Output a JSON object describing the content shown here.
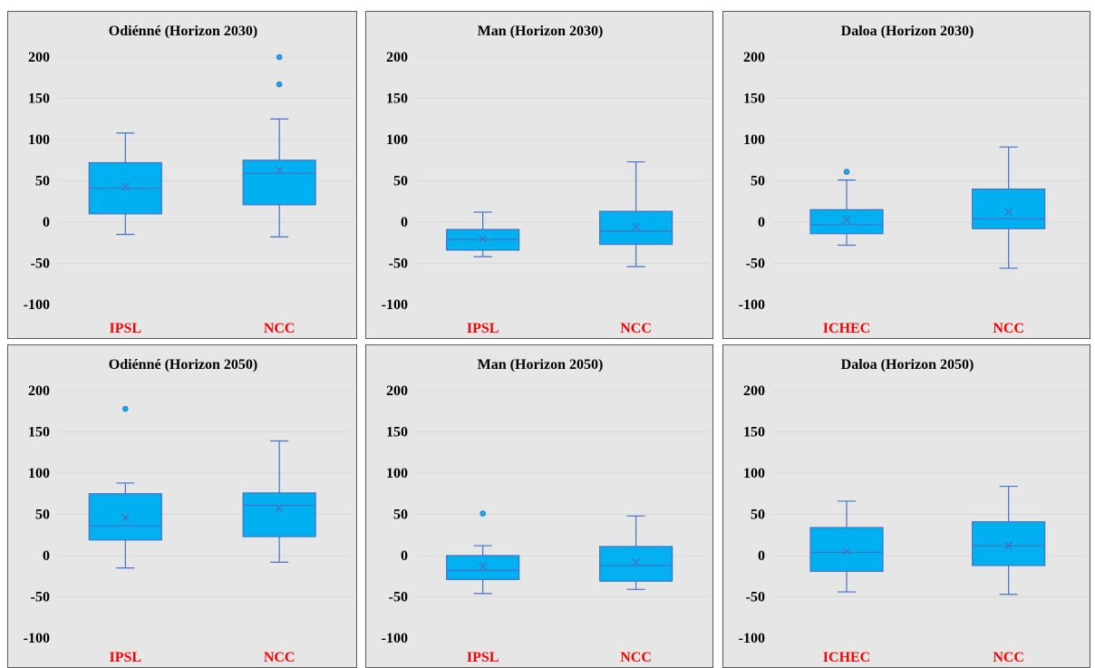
{
  "colors": {
    "box_fill": "#00b0f0",
    "box_stroke": "#4472c4",
    "panel_bg": "#e6e6e6",
    "category_label": "#ff0000",
    "gridline": "#d9d9d9"
  },
  "chart_data": [
    {
      "type": "box",
      "title": "Odiénné (Horizon 2030)",
      "ylim": [
        -100,
        200
      ],
      "yticks": [
        -100,
        -50,
        0,
        50,
        100,
        150,
        200
      ],
      "categories": [
        "IPSL",
        "NCC"
      ],
      "boxes": [
        {
          "min": -15,
          "q1": 10,
          "median": 41,
          "q3": 72,
          "max": 108,
          "mean": 43,
          "outliers": []
        },
        {
          "min": -18,
          "q1": 21,
          "median": 59,
          "q3": 75,
          "max": 125,
          "mean": 63,
          "outliers": [
            167,
            200
          ]
        }
      ]
    },
    {
      "type": "box",
      "title": "Man (Horizon 2030)",
      "ylim": [
        -100,
        200
      ],
      "yticks": [
        -100,
        -50,
        0,
        50,
        100,
        150,
        200
      ],
      "categories": [
        "IPSL",
        "NCC"
      ],
      "boxes": [
        {
          "min": -42,
          "q1": -34,
          "median": -21,
          "q3": -9,
          "max": 12,
          "mean": -20,
          "outliers": []
        },
        {
          "min": -54,
          "q1": -27,
          "median": -11,
          "q3": 13,
          "max": 73,
          "mean": -6,
          "outliers": []
        }
      ]
    },
    {
      "type": "box",
      "title": "Daloa (Horizon 2030)",
      "ylim": [
        -100,
        200
      ],
      "yticks": [
        -100,
        -50,
        0,
        50,
        100,
        150,
        200
      ],
      "categories": [
        "ICHEC",
        "NCC"
      ],
      "boxes": [
        {
          "min": -28,
          "q1": -14,
          "median": -3,
          "q3": 15,
          "max": 51,
          "mean": 3,
          "outliers": [
            61
          ]
        },
        {
          "min": -56,
          "q1": -8,
          "median": 4,
          "q3": 40,
          "max": 91,
          "mean": 12,
          "outliers": []
        }
      ]
    },
    {
      "type": "box",
      "title": "Odiénné (Horizon 2050)",
      "ylim": [
        -100,
        200
      ],
      "yticks": [
        -100,
        -50,
        0,
        50,
        100,
        150,
        200
      ],
      "categories": [
        "IPSL",
        "NCC"
      ],
      "boxes": [
        {
          "min": -15,
          "q1": 19,
          "median": 36,
          "q3": 75,
          "max": 88,
          "mean": 46,
          "outliers": [
            178
          ]
        },
        {
          "min": -8,
          "q1": 23,
          "median": 61,
          "q3": 76,
          "max": 139,
          "mean": 57,
          "outliers": []
        }
      ]
    },
    {
      "type": "box",
      "title": "Man (Horizon 2050)",
      "ylim": [
        -100,
        200
      ],
      "yticks": [
        -100,
        -50,
        0,
        50,
        100,
        150,
        200
      ],
      "categories": [
        "IPSL",
        "NCC"
      ],
      "boxes": [
        {
          "min": -46,
          "q1": -29,
          "median": -18,
          "q3": 0,
          "max": 12,
          "mean": -13,
          "outliers": [
            51
          ]
        },
        {
          "min": -41,
          "q1": -31,
          "median": -12,
          "q3": 11,
          "max": 48,
          "mean": -8,
          "outliers": []
        }
      ]
    },
    {
      "type": "box",
      "title": "Daloa (Horizon 2050)",
      "ylim": [
        -100,
        200
      ],
      "yticks": [
        -100,
        -50,
        0,
        50,
        100,
        150,
        200
      ],
      "categories": [
        "ICHEC",
        "NCC"
      ],
      "boxes": [
        {
          "min": -44,
          "q1": -19,
          "median": 4,
          "q3": 34,
          "max": 66,
          "mean": 5,
          "outliers": []
        },
        {
          "min": -47,
          "q1": -12,
          "median": 12,
          "q3": 41,
          "max": 84,
          "mean": 12,
          "outliers": []
        }
      ]
    }
  ]
}
